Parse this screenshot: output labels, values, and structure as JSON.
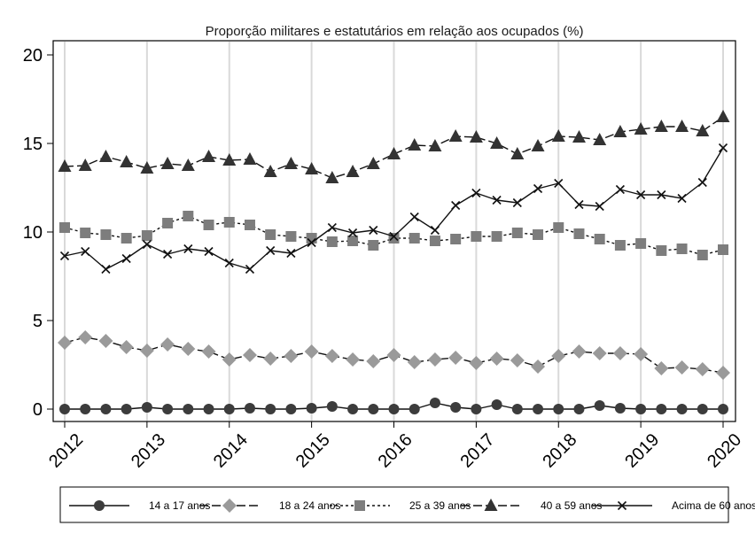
{
  "chart_data": {
    "type": "line",
    "title": "Proporção militares e estatutários em relação aos ocupados (%)",
    "xlabel": "",
    "ylabel": "",
    "xlim": [
      2012,
      2020
    ],
    "ylim": [
      -0.7,
      20.8
    ],
    "x_ticks": [
      2012,
      2013,
      2014,
      2015,
      2016,
      2017,
      2018,
      2019,
      2020
    ],
    "x_tick_labels": [
      "2012",
      "2013",
      "2014",
      "2015",
      "2016",
      "2017",
      "2018",
      "2019",
      "2020"
    ],
    "y_ticks": [
      0,
      5,
      10,
      15,
      20
    ],
    "y_tick_labels": [
      "0",
      "5",
      "10",
      "15",
      "20"
    ],
    "grid": "vertical",
    "legend_position": "bottom",
    "x": [
      2012.0,
      2012.25,
      2012.5,
      2012.75,
      2013.0,
      2013.25,
      2013.5,
      2013.75,
      2014.0,
      2014.25,
      2014.5,
      2014.75,
      2015.0,
      2015.25,
      2015.5,
      2015.75,
      2016.0,
      2016.25,
      2016.5,
      2016.75,
      2017.0,
      2017.25,
      2017.5,
      2017.75,
      2018.0,
      2018.25,
      2018.5,
      2018.75,
      2019.0,
      2019.25,
      2019.5,
      2019.75,
      2020.0
    ],
    "series": [
      {
        "name": "14 a 17 anos",
        "marker": "circle",
        "dash": "solid",
        "values": [
          0.0,
          0.0,
          0.0,
          0.0,
          0.1,
          0.0,
          0.0,
          0.0,
          0.0,
          0.05,
          0.0,
          0.0,
          0.05,
          0.15,
          0.0,
          0.0,
          0.0,
          0.0,
          0.35,
          0.1,
          0.0,
          0.25,
          0.0,
          0.0,
          0.0,
          0.0,
          0.2,
          0.05,
          0.0,
          0.0,
          0.0,
          0.0,
          0.0
        ]
      },
      {
        "name": "18 a 24 anos",
        "marker": "diamond",
        "dash": "longdash",
        "values": [
          3.75,
          4.05,
          3.85,
          3.5,
          3.3,
          3.65,
          3.4,
          3.25,
          2.8,
          3.05,
          2.85,
          3.0,
          3.25,
          3.0,
          2.8,
          2.7,
          3.05,
          2.65,
          2.8,
          2.9,
          2.6,
          2.85,
          2.75,
          2.4,
          3.0,
          3.25,
          3.15,
          3.15,
          3.1,
          2.3,
          2.35,
          2.25,
          2.05
        ]
      },
      {
        "name": "25 a 39 anos",
        "marker": "square",
        "dash": "shortdash",
        "values": [
          10.25,
          9.95,
          9.85,
          9.65,
          9.8,
          10.5,
          10.9,
          10.4,
          10.55,
          10.4,
          9.85,
          9.75,
          9.65,
          9.45,
          9.5,
          9.25,
          9.65,
          9.65,
          9.5,
          9.6,
          9.75,
          9.75,
          9.95,
          9.85,
          10.25,
          9.9,
          9.6,
          9.25,
          9.35,
          8.95,
          9.05,
          8.7,
          9.0
        ]
      },
      {
        "name": "40 a 59 anos",
        "marker": "triangle",
        "dash": "longdash",
        "values": [
          13.7,
          13.75,
          14.25,
          13.95,
          13.6,
          13.85,
          13.75,
          14.25,
          14.05,
          14.1,
          13.4,
          13.85,
          13.55,
          13.05,
          13.4,
          13.85,
          14.4,
          14.9,
          14.85,
          15.4,
          15.35,
          15.0,
          14.4,
          14.85,
          15.4,
          15.35,
          15.2,
          15.65,
          15.8,
          15.95,
          15.95,
          15.7,
          16.5
        ]
      },
      {
        "name": "Acima de 60 anos",
        "marker": "x",
        "dash": "solid",
        "values": [
          8.65,
          8.9,
          7.9,
          8.5,
          9.3,
          8.75,
          9.05,
          8.9,
          8.25,
          7.9,
          8.95,
          8.8,
          9.4,
          10.25,
          9.95,
          10.1,
          9.75,
          10.85,
          10.1,
          11.5,
          12.2,
          11.8,
          11.65,
          12.45,
          12.75,
          11.55,
          11.45,
          12.4,
          12.1,
          12.1,
          11.9,
          12.8,
          14.75
        ]
      }
    ]
  }
}
